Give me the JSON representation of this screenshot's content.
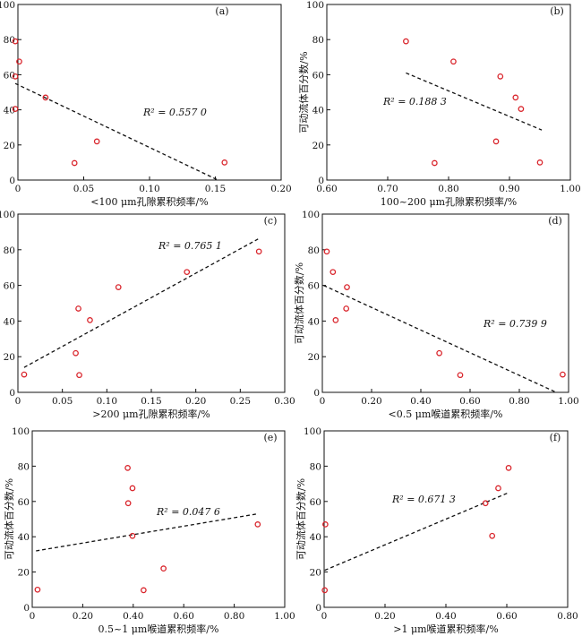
{
  "chart_data": [
    {
      "type": "scatter",
      "panel_label": "(a)",
      "xlabel": "<100 μm孔隙累积频率/%",
      "ylabel": "可动流体百分数/%",
      "xlim": [
        0,
        0.2
      ],
      "ylim": [
        0,
        100
      ],
      "xticks": [
        "0",
        "0.05",
        "0.10",
        "0.15",
        "0.20"
      ],
      "yticks": [
        "0",
        "20",
        "40",
        "60",
        "80",
        "100"
      ],
      "r2": "R² = 0.557 0",
      "points": [
        {
          "x": -0.002,
          "y": 79
        },
        {
          "x": 0.001,
          "y": 67.5
        },
        {
          "x": -0.002,
          "y": 59
        },
        {
          "x": -0.002,
          "y": 40.5
        },
        {
          "x": 0.021,
          "y": 47
        },
        {
          "x": 0.06,
          "y": 22
        },
        {
          "x": 0.043,
          "y": 9.7
        },
        {
          "x": 0.157,
          "y": 10
        }
      ],
      "trend": {
        "x": [
          -0.002,
          0.152
        ],
        "y": [
          55,
          0
        ]
      }
    },
    {
      "type": "scatter",
      "panel_label": "(b)",
      "xlabel": "100~200 μm孔隙累积频率/%",
      "ylabel": "可动流体百分数/%",
      "xlim": [
        0.6,
        1.0
      ],
      "ylim": [
        0,
        100
      ],
      "xticks": [
        "0.60",
        "0.70",
        "0.80",
        "0.90",
        "1.00"
      ],
      "yticks": [
        "0",
        "20",
        "40",
        "60",
        "80",
        "100"
      ],
      "r2": "R² = 0.188 3",
      "points": [
        {
          "x": 0.73,
          "y": 79
        },
        {
          "x": 0.808,
          "y": 67.5
        },
        {
          "x": 0.885,
          "y": 59
        },
        {
          "x": 0.91,
          "y": 47
        },
        {
          "x": 0.919,
          "y": 40.5
        },
        {
          "x": 0.878,
          "y": 22
        },
        {
          "x": 0.777,
          "y": 9.7
        },
        {
          "x": 0.95,
          "y": 10
        }
      ],
      "trend": {
        "x": [
          0.73,
          0.953
        ],
        "y": [
          61,
          28.5
        ]
      }
    },
    {
      "type": "scatter",
      "panel_label": "(c)",
      "xlabel": ">200 μm孔隙累积频率/%",
      "ylabel": "可动流体百分数/%",
      "xlim": [
        0,
        0.3
      ],
      "ylim": [
        0,
        100
      ],
      "xticks": [
        "0",
        "0.05",
        "0.10",
        "0.15",
        "0.20",
        "0.25",
        "0.30"
      ],
      "yticks": [
        "0",
        "20",
        "40",
        "60",
        "80",
        "100"
      ],
      "r2": "R² = 0.765 1",
      "points": [
        {
          "x": 0.271,
          "y": 79
        },
        {
          "x": 0.19,
          "y": 67.5
        },
        {
          "x": 0.113,
          "y": 59
        },
        {
          "x": 0.068,
          "y": 47
        },
        {
          "x": 0.081,
          "y": 40.5
        },
        {
          "x": 0.065,
          "y": 22
        },
        {
          "x": 0.069,
          "y": 9.7
        },
        {
          "x": 0.007,
          "y": 10
        }
      ],
      "trend": {
        "x": [
          0.007,
          0.27
        ],
        "y": [
          14,
          86
        ]
      }
    },
    {
      "type": "scatter",
      "panel_label": "(d)",
      "xlabel": "<0.5 μm喉道累积频率/%",
      "ylabel": "可动流体百分数/%",
      "xlim": [
        0,
        1.0
      ],
      "ylim": [
        0,
        100
      ],
      "xticks": [
        "0",
        "0.20",
        "0.40",
        "0.60",
        "0.80",
        "1.00"
      ],
      "yticks": [
        "0",
        "20",
        "40",
        "60",
        "80",
        "100"
      ],
      "r2": "R² = 0.739 9",
      "points": [
        {
          "x": 0.018,
          "y": 79
        },
        {
          "x": 0.043,
          "y": 67.5
        },
        {
          "x": 0.1,
          "y": 59
        },
        {
          "x": 0.097,
          "y": 47
        },
        {
          "x": 0.054,
          "y": 40.5
        },
        {
          "x": 0.475,
          "y": 22
        },
        {
          "x": 0.56,
          "y": 9.7
        },
        {
          "x": 0.976,
          "y": 10
        }
      ],
      "trend": {
        "x": [
          0.005,
          0.95
        ],
        "y": [
          60,
          0
        ]
      }
    },
    {
      "type": "scatter",
      "panel_label": "(e)",
      "xlabel": "0.5~1 μm喉道累积频率/%",
      "ylabel": "可动流体百分数/%",
      "xlim": [
        0,
        1.0
      ],
      "ylim": [
        0,
        100
      ],
      "xticks": [
        "0",
        "0.20",
        "0.40",
        "0.60",
        "0.80",
        "1.00"
      ],
      "yticks": [
        "0",
        "20",
        "40",
        "60",
        "80",
        "100"
      ],
      "r2": "R² = 0.047 6",
      "points": [
        {
          "x": 0.378,
          "y": 79
        },
        {
          "x": 0.397,
          "y": 67.5
        },
        {
          "x": 0.38,
          "y": 59
        },
        {
          "x": 0.893,
          "y": 47
        },
        {
          "x": 0.397,
          "y": 40.5
        },
        {
          "x": 0.52,
          "y": 22
        },
        {
          "x": 0.441,
          "y": 9.7
        },
        {
          "x": 0.021,
          "y": 10
        }
      ],
      "trend": {
        "x": [
          0.015,
          0.893
        ],
        "y": [
          32,
          53
        ]
      }
    },
    {
      "type": "scatter",
      "panel_label": "(f)",
      "xlabel": ">1 μm喉道累积频率/%",
      "ylabel": "可动流体百分数/%",
      "xlim": [
        0,
        0.8
      ],
      "ylim": [
        0,
        100
      ],
      "xticks": [
        "0",
        "0.20",
        "0.40",
        "0.60",
        "0.80"
      ],
      "yticks": [
        "0",
        "20",
        "40",
        "60",
        "80",
        "100"
      ],
      "r2": "R² = 0.671 3",
      "points": [
        {
          "x": 0.606,
          "y": 79
        },
        {
          "x": 0.572,
          "y": 67.5
        },
        {
          "x": 0.53,
          "y": 59
        },
        {
          "x": 0.004,
          "y": 47
        },
        {
          "x": 0.552,
          "y": 40.5
        },
        {
          "x": 0.002,
          "y": 9.7
        }
      ],
      "trend": {
        "x": [
          0.002,
          0.606
        ],
        "y": [
          21,
          65
        ]
      }
    }
  ]
}
